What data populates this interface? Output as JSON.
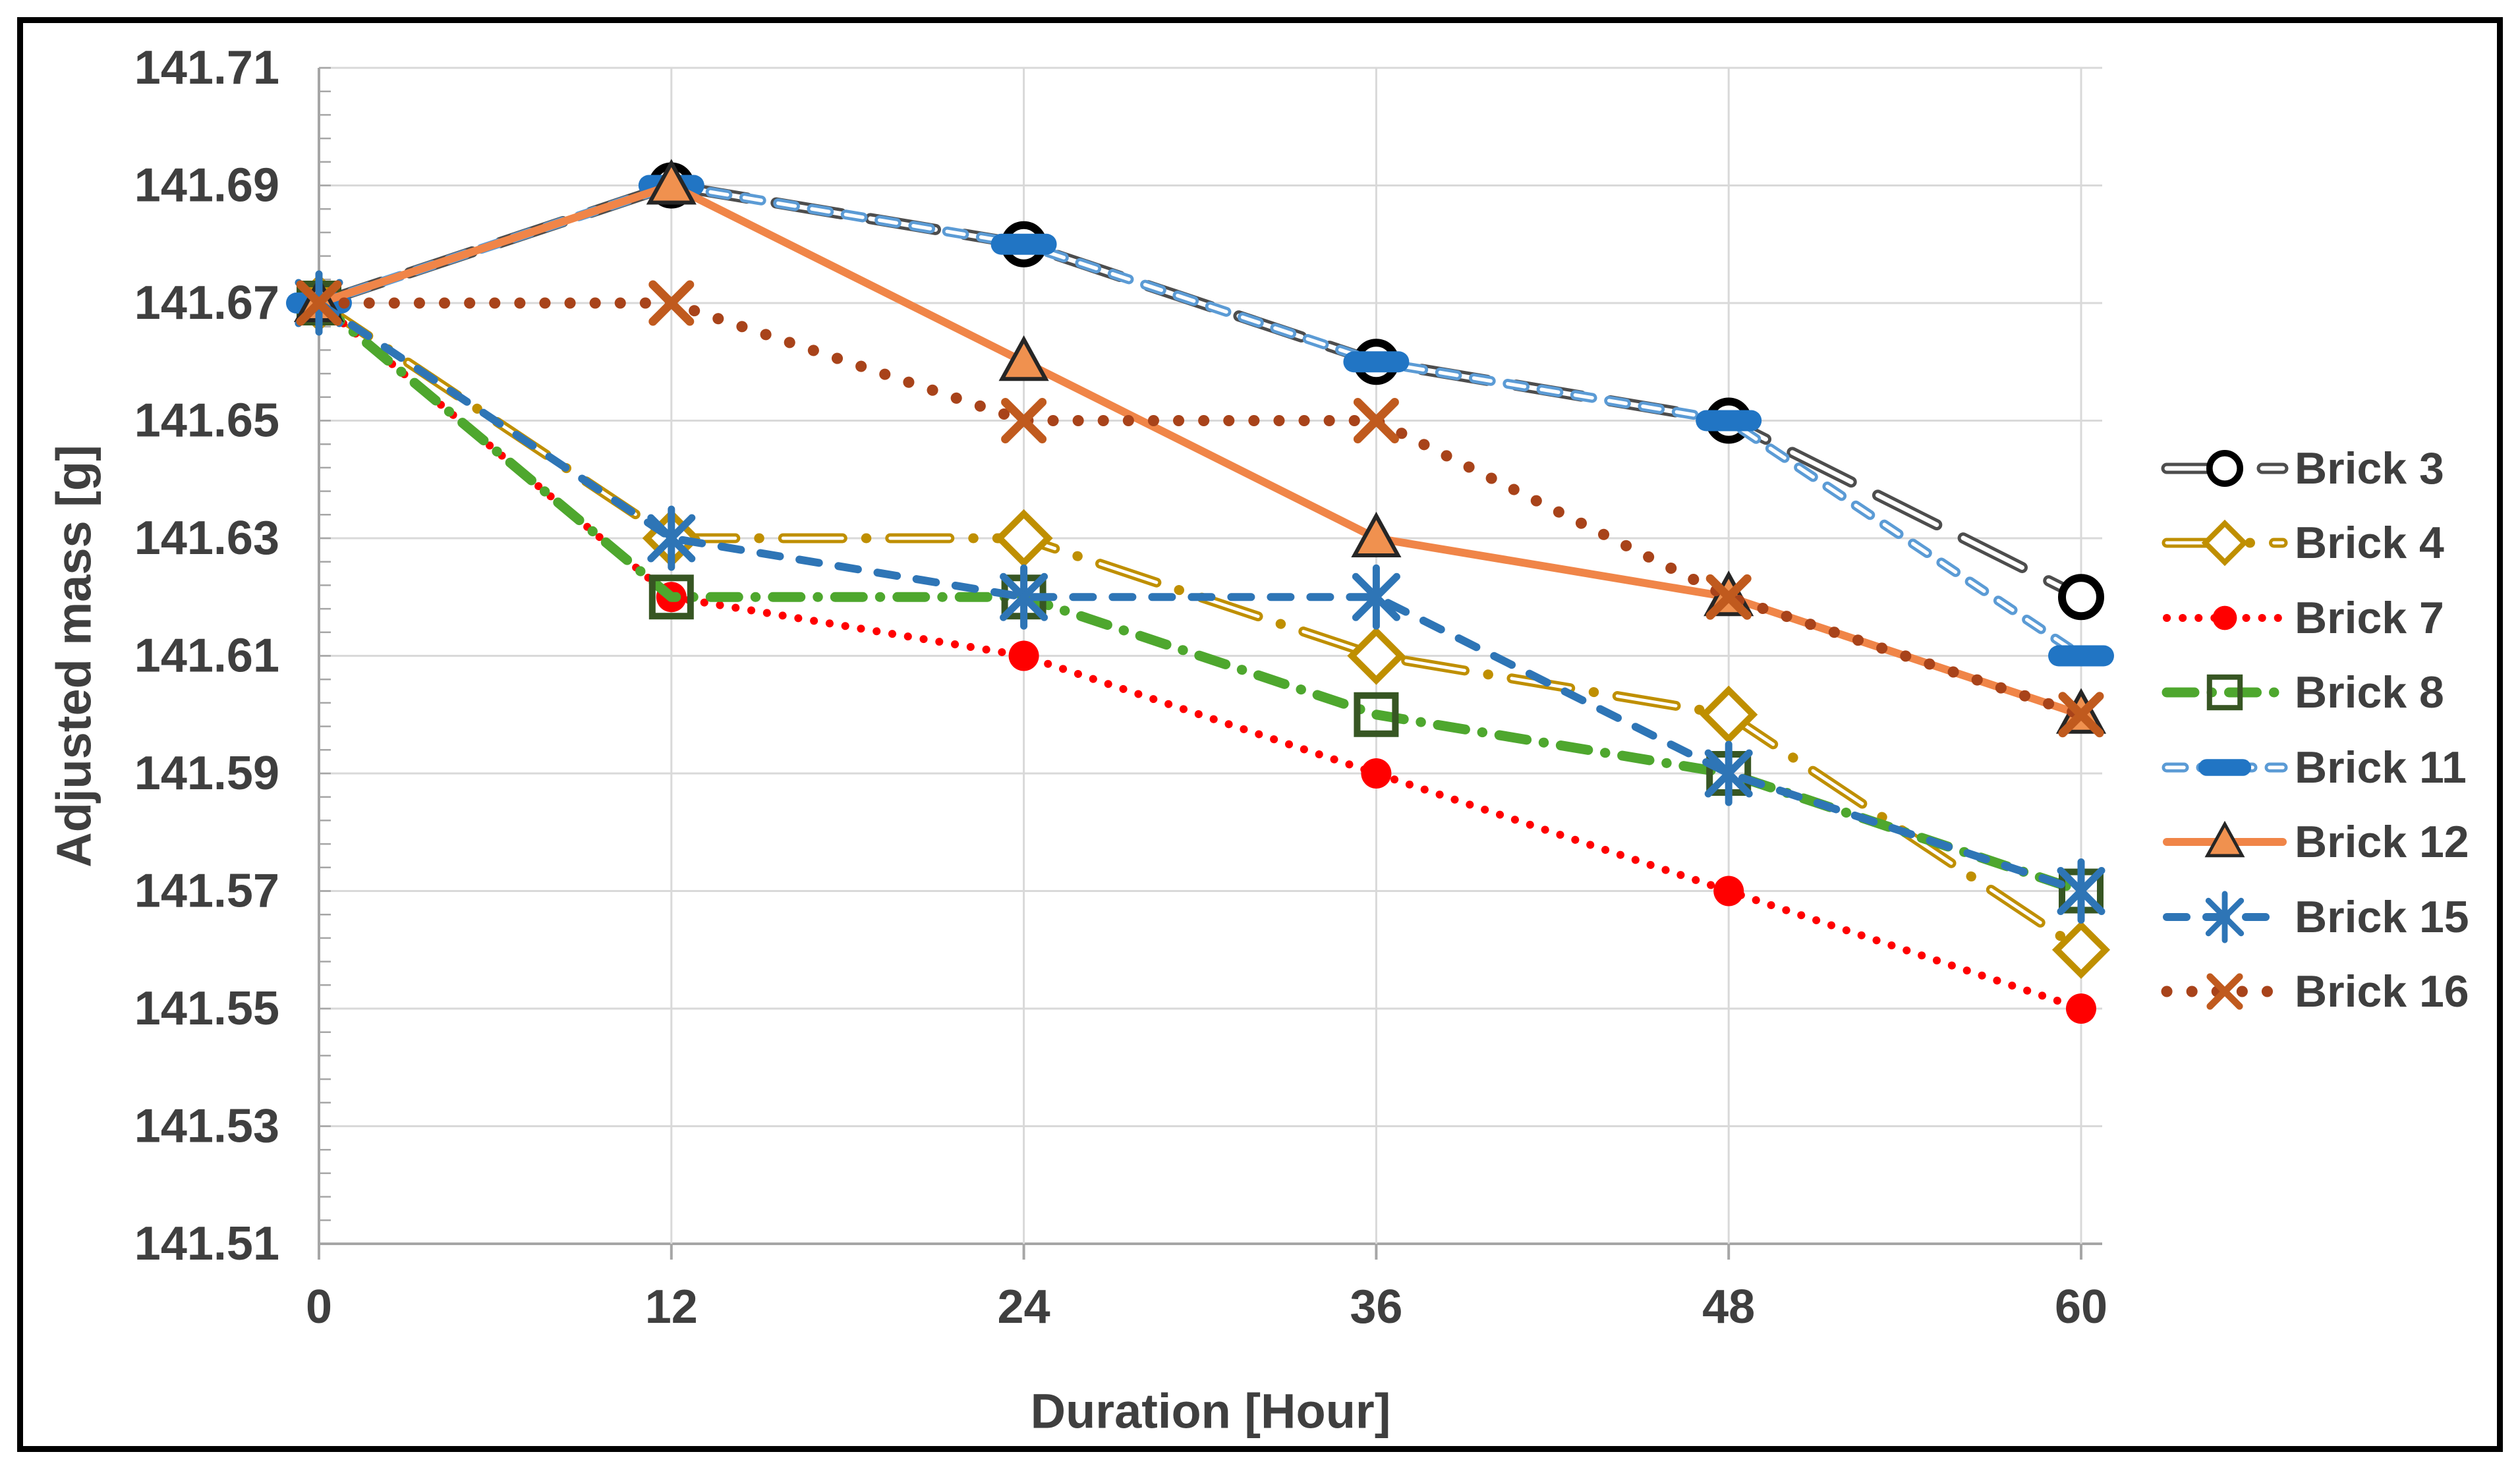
{
  "figure": {
    "background": "#FFFFFF",
    "border_color": "#000000",
    "text_color": "#3F3F3F",
    "gridline_color": "#D9D9D9",
    "axis_line_color": "#A6A6A6"
  },
  "chart_data": {
    "type": "line",
    "title": "",
    "xlabel": "Duration [Hour]",
    "ylabel": "Adjusted mass [g]",
    "x": [
      0,
      12,
      24,
      36,
      48,
      60
    ],
    "x_tick_labels": [
      "0",
      "12",
      "24",
      "36",
      "48",
      "60"
    ],
    "y_tick_labels": [
      "141.71",
      "141.69",
      "141.67",
      "141.65",
      "141.63",
      "141.61",
      "141.59",
      "141.57",
      "141.55",
      "141.53",
      "141.51"
    ],
    "ylim": [
      141.51,
      141.71
    ],
    "y_major_unit": 0.02,
    "y_minor_unit": 0.004,
    "grid": true,
    "legend_position": "right",
    "series": [
      {
        "name": "Brick 3",
        "color": "#4D4D4D",
        "line_style": "long-dash-hollow",
        "marker": "circle-open",
        "marker_color": "#000000",
        "values": [
          141.67,
          141.69,
          141.68,
          141.66,
          141.65,
          141.62
        ]
      },
      {
        "name": "Brick 4",
        "color": "#BF8F00",
        "line_style": "long-dash-dot-hollow",
        "marker": "diamond-open",
        "marker_color": "#BF8F00",
        "values": [
          141.67,
          141.63,
          141.63,
          141.61,
          141.6,
          141.56
        ]
      },
      {
        "name": "Brick 7",
        "color": "#FF0000",
        "line_style": "dotted",
        "marker": "circle-filled",
        "marker_color": "#FF0000",
        "values": [
          141.67,
          141.62,
          141.61,
          141.59,
          141.57,
          141.55
        ]
      },
      {
        "name": "Brick 8",
        "color": "#4EA72E",
        "line_style": "dash-dot",
        "marker": "square-open",
        "marker_color": "#375623",
        "values": [
          141.67,
          141.62,
          141.62,
          141.6,
          141.59,
          141.57
        ]
      },
      {
        "name": "Brick 11",
        "color": "#5B9BD5",
        "line_style": "short-dash-hollow",
        "marker": "dash-bar",
        "marker_color": "#2175C4",
        "values": [
          141.67,
          141.69,
          141.68,
          141.66,
          141.65,
          141.61
        ]
      },
      {
        "name": "Brick 12",
        "color": "#F08548",
        "line_style": "solid",
        "marker": "triangle-filled",
        "marker_color": "#F0914F",
        "values": [
          141.67,
          141.69,
          141.66,
          141.63,
          141.62,
          141.6
        ]
      },
      {
        "name": "Brick 15",
        "color": "#2E75B6",
        "line_style": "dash",
        "marker": "asterisk",
        "marker_color": "#2E75B6",
        "values": [
          141.67,
          141.63,
          141.62,
          141.62,
          141.59,
          141.57
        ]
      },
      {
        "name": "Brick 16",
        "color": "#A8431A",
        "line_style": "dotted-large",
        "marker": "x-cross",
        "marker_color": "#C05A1E",
        "values": [
          141.67,
          141.67,
          141.65,
          141.65,
          141.62,
          141.6
        ]
      }
    ]
  }
}
